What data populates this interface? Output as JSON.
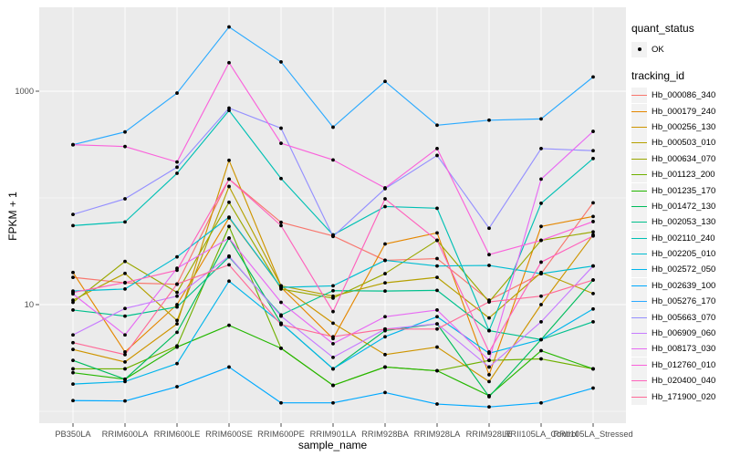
{
  "figure": {
    "panel_background": "#EBEBEB",
    "grid_color": "#FFFFFF",
    "tick_color": "#4D4D4D",
    "tick_label_color": "#4D4D4D",
    "legend_key_background": "#F2F2F2",
    "point_color": "#000000"
  },
  "y_axis": {
    "title": "FPKM + 1",
    "ticks": [
      {
        "label": "1000",
        "value": 1000
      },
      {
        "label": "10",
        "value": 10
      }
    ]
  },
  "x_axis": {
    "title": "sample_name"
  },
  "legend": {
    "quant_status_title": "quant_status",
    "ok_label": "OK",
    "tracking_id_title": "tracking_id"
  },
  "chart_data": {
    "type": "line",
    "title": "",
    "xlabel": "sample_name",
    "ylabel": "FPKM + 1",
    "y_scale": "log10",
    "ylim": [
      1,
      4500
    ],
    "y_major_ticks": [
      10,
      1000
    ],
    "y_minor_ticks": [
      1,
      100
    ],
    "grid": true,
    "legend_position": "right",
    "marker": "black point on every vertex",
    "categories": [
      "PB350LA",
      "RRIM600LA",
      "RRIM600LE",
      "RRIM600SE",
      "RRIM600PE",
      "RRIM901LA",
      "RRIM928BA",
      "RRIM928LA",
      "RRIM928LE",
      "RRII105LA_Control",
      "RRII105LA_Stressed"
    ],
    "series": [
      {
        "name": "Hb_000086_340",
        "color": "#F8766D",
        "values": [
          18,
          16,
          15.5,
          150,
          59,
          44,
          26,
          27,
          11,
          19.5,
          90
        ]
      },
      {
        "name": "Hb_000179_240",
        "color": "#E58700",
        "values": [
          20,
          3.6,
          10,
          65,
          14.5,
          4.8,
          37,
          47,
          2.2,
          54,
          67
        ]
      },
      {
        "name": "Hb_000256_130",
        "color": "#CE9500",
        "values": [
          3.8,
          2.9,
          6.6,
          225,
          15,
          6.7,
          3.4,
          4.0,
          1.9,
          10,
          45
        ]
      },
      {
        "name": "Hb_000503_010",
        "color": "#B5A000",
        "values": [
          11,
          19.6,
          7.1,
          128,
          15,
          12,
          16,
          18,
          7.5,
          20,
          12.7
        ]
      },
      {
        "name": "Hb_000634_070",
        "color": "#9AA800",
        "values": [
          10.5,
          25.4,
          13,
          91,
          14,
          11.5,
          19.5,
          40,
          10.6,
          40,
          48
        ]
      },
      {
        "name": "Hb_001123_200",
        "color": "#6FB000",
        "values": [
          2.5,
          2.5,
          4.1,
          54,
          3.9,
          1.75,
          2.6,
          2.4,
          3.0,
          3.1,
          2.5
        ]
      },
      {
        "name": "Hb_001235_170",
        "color": "#24B700",
        "values": [
          2.3,
          2.0,
          4.0,
          6.4,
          3.9,
          1.75,
          2.6,
          2.4,
          1.4,
          3.7,
          2.5
        ]
      },
      {
        "name": "Hb_001472_130",
        "color": "#00BC5C",
        "values": [
          3.0,
          2.0,
          5.5,
          42,
          6.7,
          2.5,
          5.7,
          6.6,
          1.37,
          4.7,
          17
        ]
      },
      {
        "name": "Hb_002053_130",
        "color": "#00C08D",
        "values": [
          8.9,
          7.8,
          9.5,
          28,
          8.0,
          13.5,
          13.4,
          13.6,
          5.7,
          4.7,
          6.9
        ]
      },
      {
        "name": "Hb_002110_240",
        "color": "#00C0B4",
        "values": [
          55,
          59.5,
          170,
          660,
          152,
          45,
          83,
          80,
          5.7,
          89,
          234
        ]
      },
      {
        "name": "Hb_002205_010",
        "color": "#00BDD2",
        "values": [
          13.4,
          14,
          28,
          66,
          14.5,
          15,
          26,
          23,
          23.3,
          19.5,
          23
        ]
      },
      {
        "name": "Hb_002572_050",
        "color": "#00B5EB",
        "values": [
          1.8,
          1.9,
          2.8,
          16.6,
          6.7,
          2.5,
          5.0,
          7.7,
          3.5,
          4.7,
          9.1
        ]
      },
      {
        "name": "Hb_002639_100",
        "color": "#00A9FF",
        "values": [
          1.26,
          1.25,
          1.7,
          2.6,
          1.2,
          1.2,
          1.5,
          1.17,
          1.1,
          1.2,
          1.65
        ]
      },
      {
        "name": "Hb_005276_170",
        "color": "#2BAAFF",
        "values": [
          315,
          415,
          960,
          4000,
          1880,
          460,
          1235,
          480,
          535,
          550,
          1360
        ]
      },
      {
        "name": "Hb_005663_070",
        "color": "#9590FF",
        "values": [
          70,
          98,
          194,
          695,
          450,
          43.5,
          122,
          250,
          52,
          290,
          277
        ]
      },
      {
        "name": "Hb_006909_060",
        "color": "#C77CFF",
        "values": [
          5.2,
          9.2,
          12,
          28.5,
          7.8,
          3.2,
          5.9,
          6.6,
          2.6,
          6.9,
          23
        ]
      },
      {
        "name": "Hb_008173_030",
        "color": "#E76BF3",
        "values": [
          12.6,
          5.2,
          21.9,
          42,
          10.5,
          4.3,
          7.7,
          8.9,
          3.0,
          150,
          420
        ]
      },
      {
        "name": "Hb_012760_010",
        "color": "#FA62DB",
        "values": [
          315,
          303,
          217,
          1850,
          325,
          227,
          124,
          290,
          29.4,
          40,
          60
        ]
      },
      {
        "name": "Hb_020400_040",
        "color": "#FF62BC",
        "values": [
          13,
          16.1,
          21,
          150,
          55,
          8.6,
          98,
          40,
          3.6,
          25,
          44
        ]
      },
      {
        "name": "Hb_171900_020",
        "color": "#FF6A98",
        "values": [
          4.4,
          3.4,
          15.6,
          23.6,
          6.5,
          5.0,
          5.9,
          5.9,
          10.6,
          12,
          17
        ]
      }
    ]
  }
}
